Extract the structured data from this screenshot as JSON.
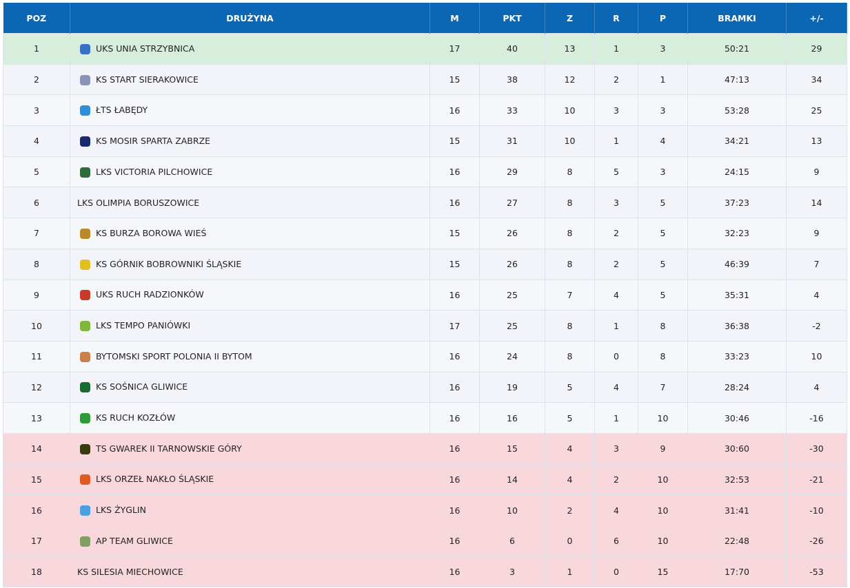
{
  "table": {
    "headers": [
      "POZ",
      "DRUŻYNA",
      "M",
      "PKT",
      "Z",
      "R",
      "P",
      "BRAMKI",
      "+/-"
    ],
    "rows": [
      [
        1,
        "UKS UNIA STRZYBNICA",
        17,
        40,
        13,
        1,
        3,
        "50:21",
        29
      ],
      [
        2,
        "KS START SIERAKOWICE",
        15,
        38,
        12,
        2,
        1,
        "47:13",
        34
      ],
      [
        3,
        "ŁTS ŁABĘDY",
        16,
        33,
        10,
        3,
        3,
        "53:28",
        25
      ],
      [
        4,
        "KS MOSIR SPARTA ZABRZE",
        15,
        31,
        10,
        1,
        4,
        "34:21",
        13
      ],
      [
        5,
        "LKS VICTORIA PILCHOWICE",
        16,
        29,
        8,
        5,
        3,
        "24:15",
        9
      ],
      [
        6,
        "LKS OLIMPIA BORUSZOWICE",
        16,
        27,
        8,
        3,
        5,
        "37:23",
        14
      ],
      [
        7,
        "KS BURZA BOROWA WIEŚ",
        15,
        26,
        8,
        2,
        5,
        "32:23",
        9
      ],
      [
        8,
        "KS GÓRNIK BOBROWNIKI ŚLĄSKIE",
        15,
        26,
        8,
        2,
        5,
        "46:39",
        7
      ],
      [
        9,
        "UKS RUCH RADZIONKÓW",
        16,
        25,
        7,
        4,
        5,
        "35:31",
        4
      ],
      [
        10,
        "LKS TEMPO PANIÓWKI",
        17,
        25,
        8,
        1,
        8,
        "36:38",
        -2
      ],
      [
        11,
        "BYTOMSKI SPORT POLONIA II BYTOM",
        16,
        24,
        8,
        0,
        8,
        "33:23",
        10
      ],
      [
        12,
        "KS SOŚNICA GLIWICE",
        16,
        19,
        5,
        4,
        7,
        "28:24",
        4
      ],
      [
        13,
        "KS RUCH KOZŁÓW",
        16,
        16,
        5,
        1,
        10,
        "30:46",
        -16
      ],
      [
        14,
        "TS GWAREK II TARNOWSKIE GÓRY",
        16,
        15,
        4,
        3,
        9,
        "30:60",
        -30
      ],
      [
        15,
        "LKS ORZEŁ NAKŁO ŚLĄSKIE",
        16,
        14,
        4,
        2,
        10,
        "32:53",
        -21
      ],
      [
        16,
        "LKS ŻYGLIN",
        16,
        10,
        2,
        4,
        10,
        "31:41",
        -10
      ],
      [
        17,
        "AP TEAM GLIWICE",
        16,
        6,
        0,
        6,
        10,
        "22:48",
        -26
      ],
      [
        18,
        "KS SILESIA MIECHOWICE",
        16,
        3,
        1,
        0,
        15,
        "17:70",
        -53
      ]
    ]
  }
}
